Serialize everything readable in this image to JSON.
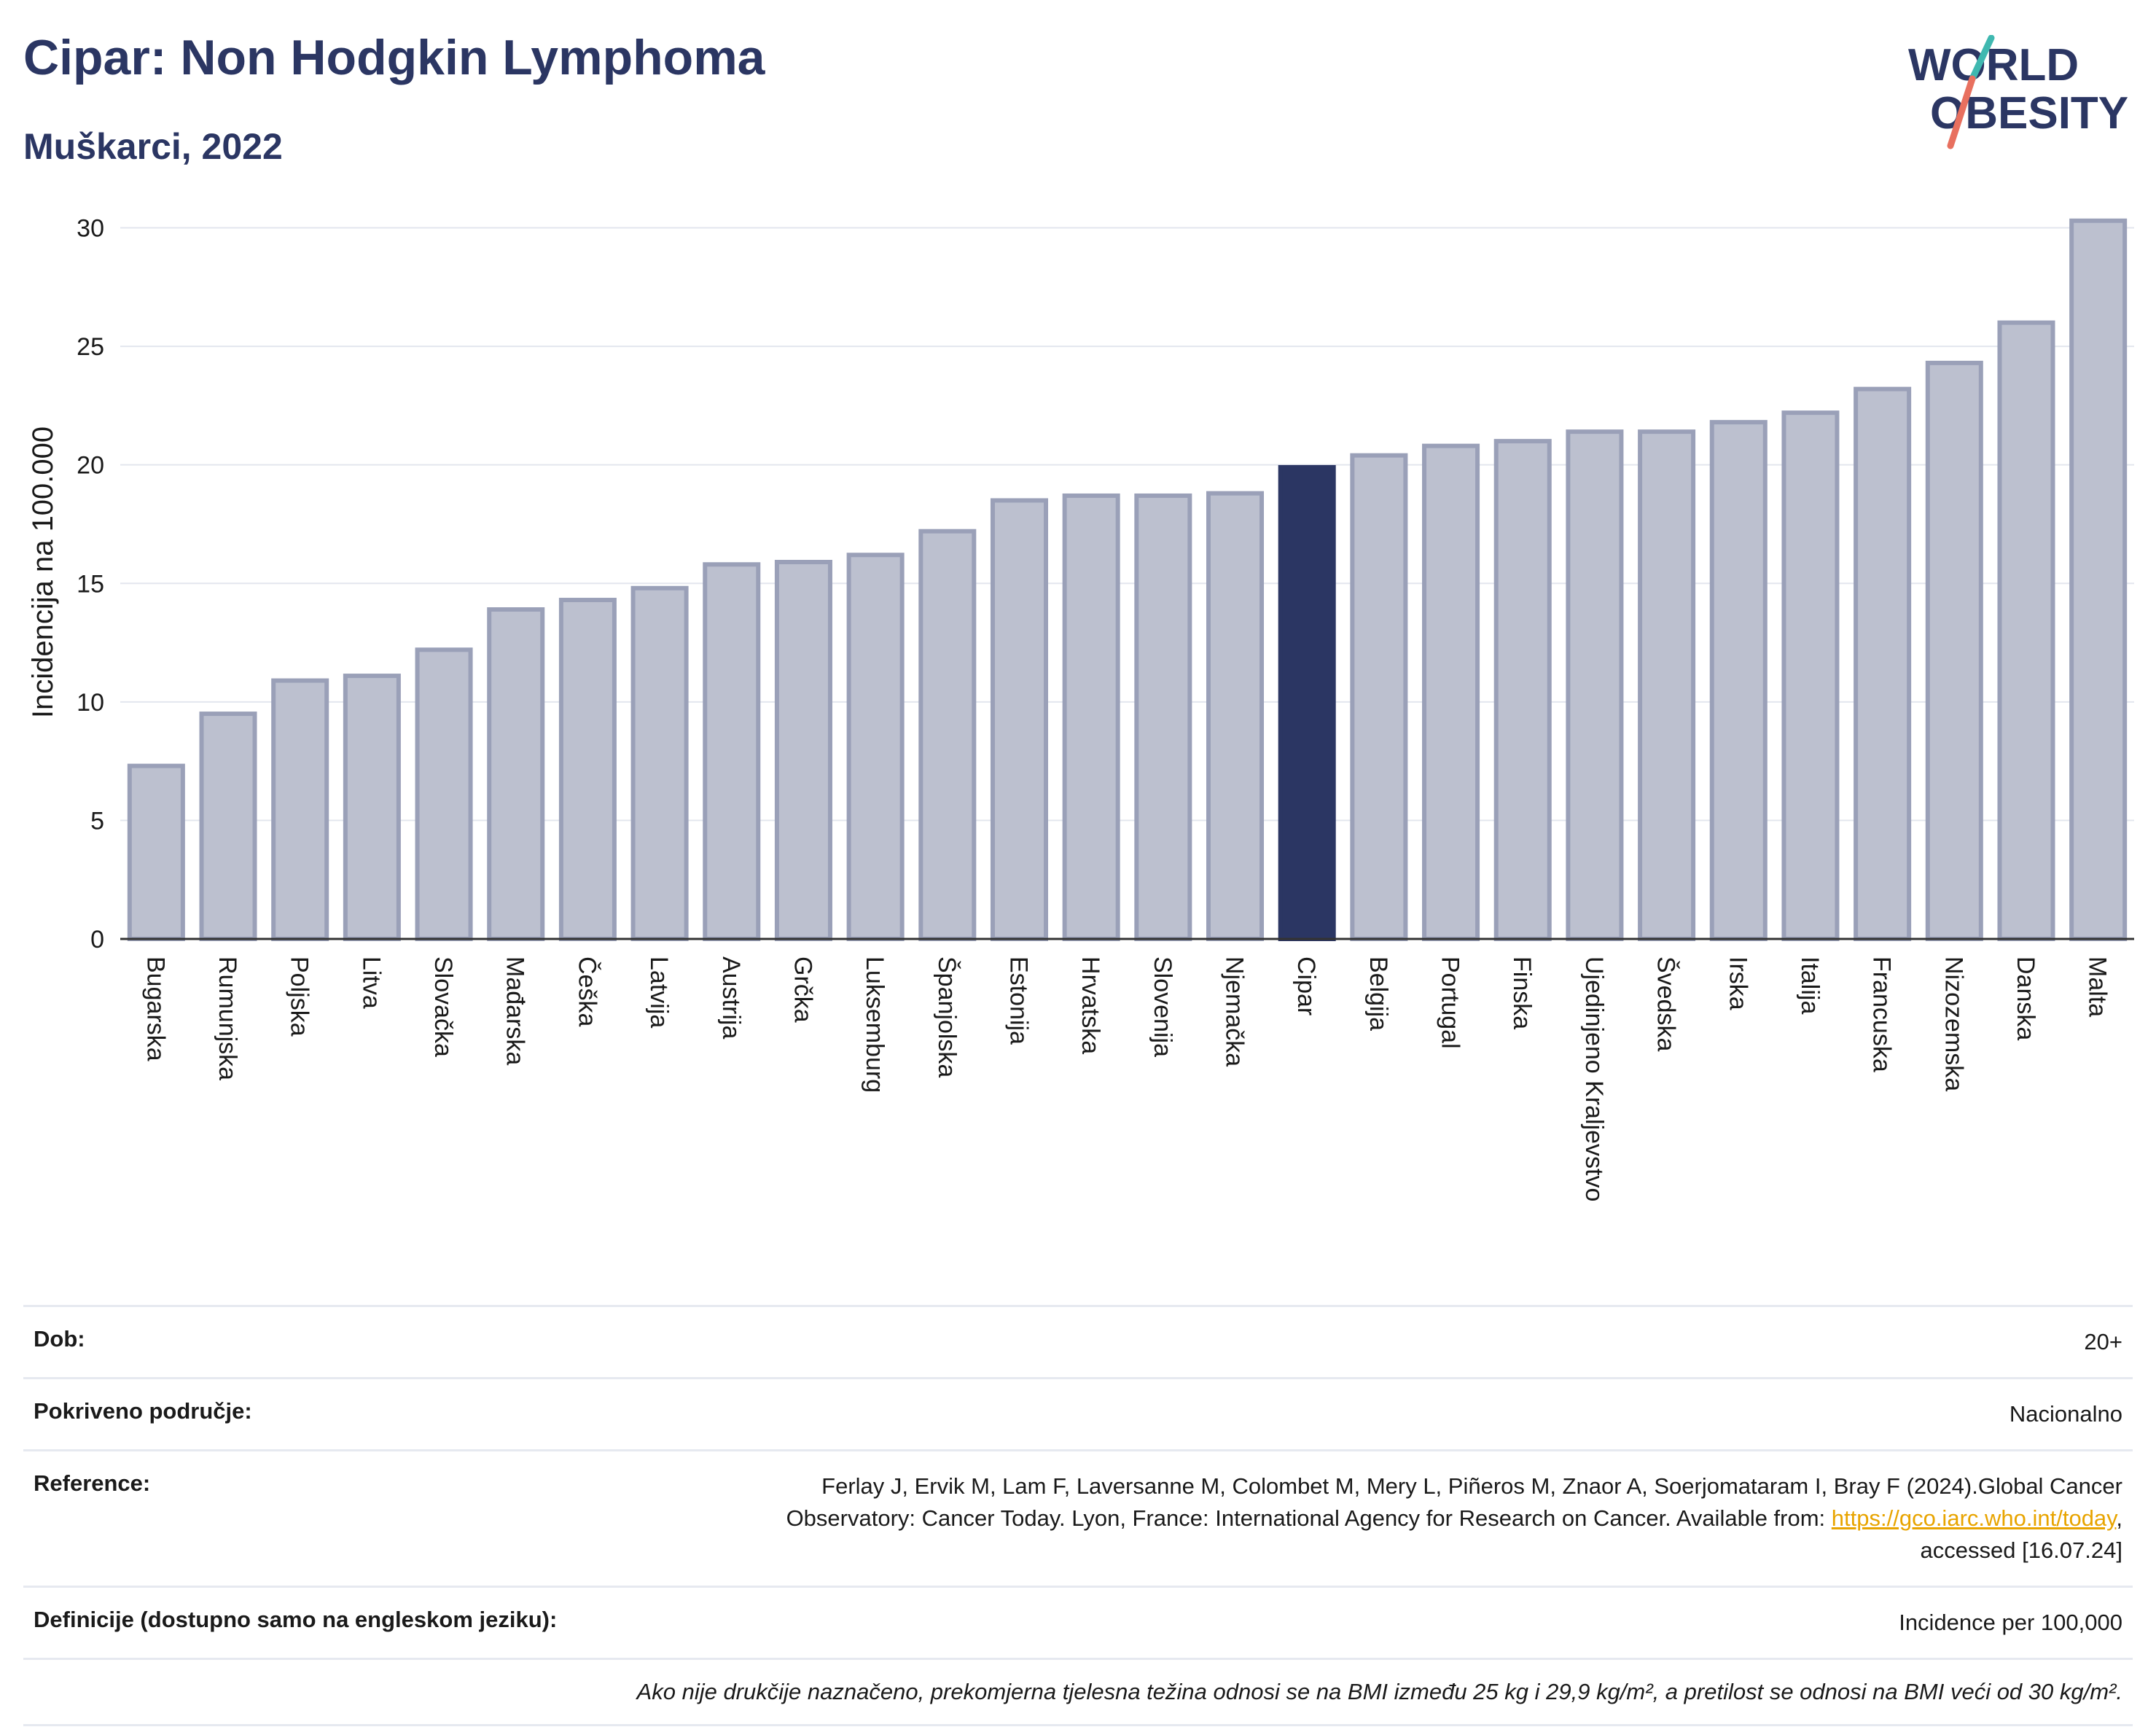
{
  "header": {
    "title": "Cipar: Non Hodgkin Lymphoma",
    "subtitle": "Muškarci, 2022"
  },
  "logo": {
    "line1": "WORLD",
    "line2": "OBESITY"
  },
  "chart_data": {
    "type": "bar",
    "title": "Cipar: Non Hodgkin Lymphoma",
    "subtitle": "Muškarci, 2022",
    "xlabel": "",
    "ylabel": "Incidencija na 100.000",
    "ylim": [
      0,
      31
    ],
    "yticks": [
      0,
      5,
      10,
      15,
      20,
      25,
      30
    ],
    "grid": true,
    "highlight": "Cipar",
    "colors": {
      "bar": "#bcc0cf",
      "bar_edge": "#9aa0b8",
      "highlight": "#2b3663",
      "grid": "#e3e6ee"
    },
    "categories": [
      "Bugarska",
      "Rumunjska",
      "Poljska",
      "Litva",
      "Slovačka",
      "Mađarska",
      "Češka",
      "Latvija",
      "Austrija",
      "Grčka",
      "Luksemburg",
      "Španjolska",
      "Estonija",
      "Hrvatska",
      "Slovenija",
      "Njemačka",
      "Cipar",
      "Belgija",
      "Portugal",
      "Finska",
      "Ujedinjeno Kraljevstvo",
      "Švedska",
      "Irska",
      "Italija",
      "Francuska",
      "Nizozemska",
      "Danska",
      "Malta"
    ],
    "values": [
      7.3,
      9.5,
      10.9,
      11.1,
      12.2,
      13.9,
      14.3,
      14.8,
      15.8,
      15.9,
      16.2,
      17.2,
      18.5,
      18.7,
      18.7,
      18.8,
      19.9,
      20.4,
      20.8,
      21.0,
      21.4,
      21.4,
      21.8,
      22.2,
      23.2,
      24.3,
      26.0,
      30.3
    ]
  },
  "meta": {
    "age_label": "Dob:",
    "age_value": "20+",
    "coverage_label": "Pokriveno područje:",
    "coverage_value": "Nacionalno",
    "reference_label": "Reference:",
    "reference_line1": "Ferlay J, Ervik M, Lam F, Laversanne M, Colombet M, Mery L, Piñeros M, Znaor A, Soerjomataram I, Bray F (2024).Global Cancer",
    "reference_line2": "Observatory: Cancer Today. Lyon, France: International Agency for Research on Cancer. Available from: ",
    "reference_link": "https://gco.iarc.who.int/today",
    "reference_line3": "accessed [16.07.24]",
    "definitions_label": "Definicije (dostupno samo na engleskom jeziku):",
    "definitions_value": "Incidence per 100,000",
    "note": "Ako nije drukčije naznačeno, prekomjerna tjelesna težina odnosi se na BMI između 25 kg i 29,9 kg/m², a pretilost se odnosi na BMI veći od 30 kg/m²."
  }
}
